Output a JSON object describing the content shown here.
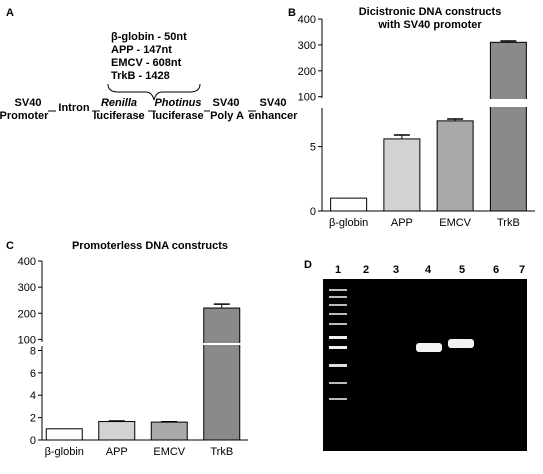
{
  "panel_labels": [
    "A",
    "B",
    "C",
    "D"
  ],
  "diagram": {
    "inserts": [
      "β-globin - 50nt",
      "APP - 147nt",
      "EMCV - 608nt",
      "TrkB - 1428"
    ],
    "elements": [
      {
        "line1": "SV40",
        "line2": "Promoter"
      },
      {
        "line1": "Intron"
      },
      {
        "line1": "Renilla",
        "line2": "luciferase"
      },
      {
        "line1": "Photinus",
        "line2": "luciferase"
      },
      {
        "line1": "SV40",
        "line2": "Poly A"
      },
      {
        "line1": "SV40",
        "line2": "enhancer"
      }
    ]
  },
  "chart_data": [
    {
      "type": "bar",
      "title": [
        "Dicistronic DNA constructs",
        "with SV40 promoter"
      ],
      "categories": [
        "β-globin",
        "APP",
        "EMCV",
        "TrkB"
      ],
      "values": [
        1,
        5.6,
        7,
        310
      ],
      "errors": [
        0,
        0.3,
        0.15,
        5
      ],
      "colors": [
        "#ffffff",
        "#d2d2d2",
        "#a9a9a9",
        "#8a8a8a"
      ],
      "ylim": [
        0,
        400
      ],
      "y_break": [
        8,
        95
      ],
      "yticks": [
        0,
        5,
        100,
        200,
        300,
        400
      ]
    },
    {
      "type": "bar",
      "title": [
        "Promoterless DNA constructs"
      ],
      "categories": [
        "β-globin",
        "APP",
        "EMCV",
        "TrkB"
      ],
      "values": [
        1,
        1.65,
        1.6,
        220
      ],
      "errors": [
        0,
        0.05,
        0.03,
        15
      ],
      "colors": [
        "#ffffff",
        "#d2d2d2",
        "#a9a9a9",
        "#8a8a8a"
      ],
      "ylim": [
        0,
        400
      ],
      "y_break": [
        8.4,
        90
      ],
      "yticks": [
        0,
        2,
        4,
        6,
        8,
        100,
        200,
        300,
        400
      ]
    }
  ],
  "gel": {
    "lanes": [
      "1",
      "2",
      "3",
      "4",
      "5",
      "6",
      "7"
    ]
  }
}
